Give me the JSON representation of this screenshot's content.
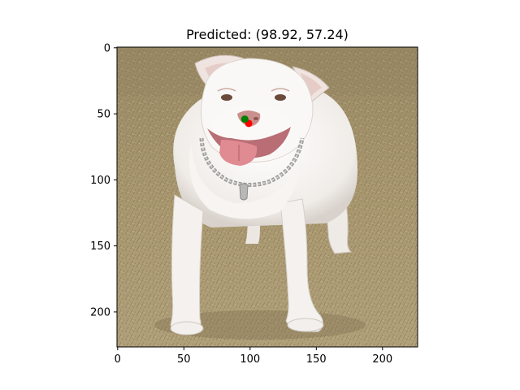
{
  "chart_data": {
    "type": "scatter",
    "title": "Predicted: (98.92, 57.24)",
    "xlabel": "",
    "ylabel": "",
    "xlim": [
      -0.5,
      226.5
    ],
    "ylim": [
      226.5,
      -0.5
    ],
    "y_inverted": true,
    "x_ticks": [
      0,
      50,
      100,
      150,
      200
    ],
    "y_ticks": [
      0,
      50,
      100,
      150,
      200
    ],
    "grid": false,
    "legend": "none",
    "background_image": "photo of a white pit bull dog wearing a chain collar, standing on dry grass",
    "series": [
      {
        "color": "#ff0000",
        "marker": "circle",
        "points": [
          {
            "x": 98.92,
            "y": 57.24
          }
        ]
      },
      {
        "color": "#008000",
        "marker": "circle",
        "points": [
          {
            "x": 96.0,
            "y": 54.0
          }
        ]
      }
    ]
  }
}
